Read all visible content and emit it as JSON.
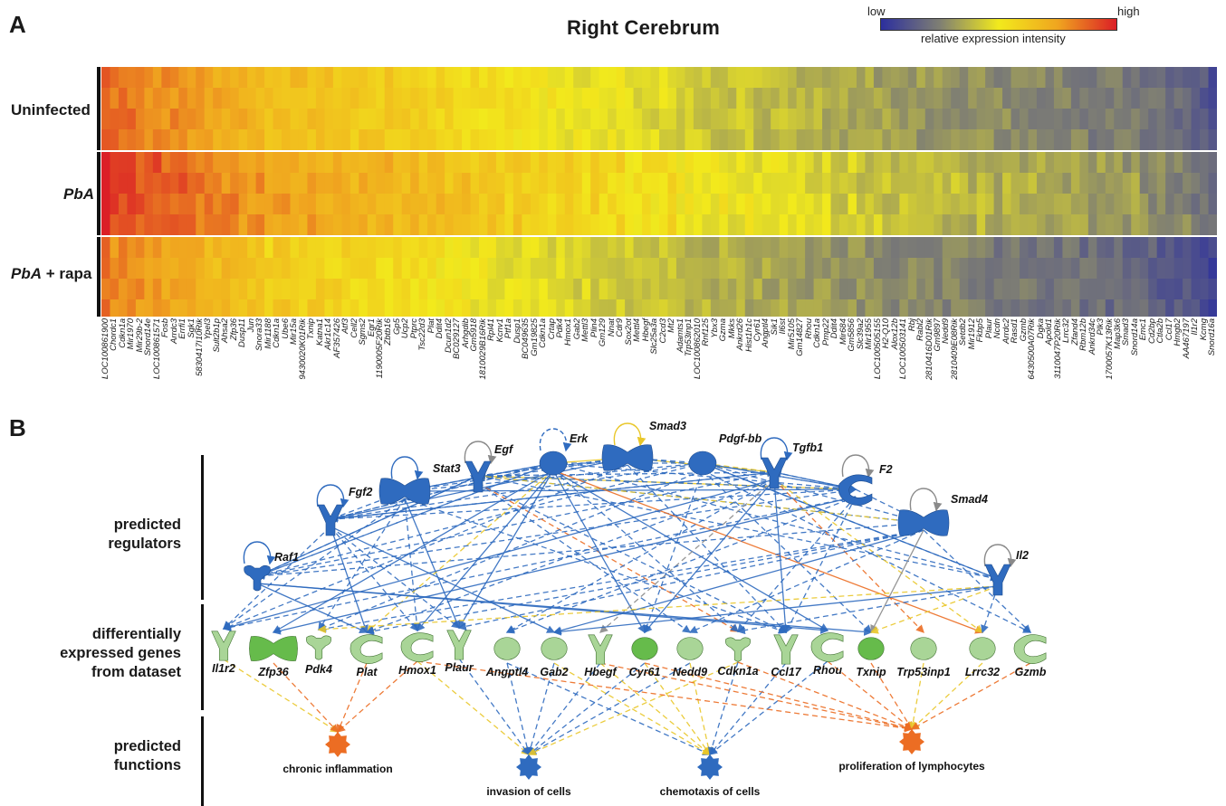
{
  "panel_a": {
    "letter": "A",
    "title": "Right Cerebrum",
    "legend": {
      "low": "low",
      "high": "high",
      "caption": "relative expression intensity",
      "colors": [
        "#2c2f9e",
        "#7f7f73",
        "#f2ea1c",
        "#f0a51f",
        "#db1f26"
      ]
    },
    "groups": [
      {
        "label_italic": "",
        "label_plain": "Uninfected",
        "rows": 4
      },
      {
        "label_italic": "PbA",
        "label_plain": "",
        "rows": 4
      },
      {
        "label_italic": "PbA",
        "label_plain": " + rapa",
        "rows": 4
      }
    ],
    "genes": [
      "LOC100861900",
      "Chordc1",
      "Cdkn1a",
      "Mir1970",
      "Mir29b-2",
      "Snord14e",
      "LOC100861571",
      "Fosb",
      "Arrdc3",
      "Errfi1",
      "Sgk1",
      "5830417I10Rik",
      "Ypel3",
      "Sult2b1p",
      "Ahsa2",
      "Zfp36",
      "Dusp11",
      "Jun",
      "Snora33",
      "Mir1188",
      "Cdkn1a",
      "Ube6",
      "Mir15a",
      "9430020K01Rik",
      "Txnip",
      "Katna1",
      "Akr1c14",
      "AF357426",
      "Atf3",
      "Cell2",
      "Sgms2",
      "Egr1",
      "1190005F20Rik",
      "Zbtb16",
      "Gp5",
      "Ucp2",
      "Ptprc",
      "Tsc22d3",
      "Plat",
      "Ddit4",
      "Dcun1d2",
      "BC029127",
      "Arhgdib",
      "Gm5918",
      "1810029B16Rik",
      "Rpl41",
      "Kcnv1",
      "Ptf1a",
      "Dusp1",
      "BC049635",
      "Gm19825",
      "Cdkn1a",
      "Crtap",
      "Pdk4",
      "Hmox1",
      "Gab2",
      "Mettl3",
      "Plin4",
      "Gm129",
      "Nnat",
      "Cdr9",
      "Sox2ot",
      "Mettl4",
      "Hbegf",
      "Slc25a3a",
      "C2cd3",
      "Mt2",
      "Adamts1",
      "Trp53inp1",
      "LOC100862010",
      "Rnf125",
      "Ybx3",
      "Gzma",
      "Mkks",
      "Ankrd26",
      "Hist1h1c",
      "Cyr61",
      "Angptl4",
      "Sik1",
      "Il6st",
      "Mir5105",
      "Gm14827",
      "Rhou",
      "Cdkn1a",
      "Pmp22",
      "Ddit4",
      "Mir684",
      "Gm5856",
      "Slc39a2",
      "Mir1955",
      "LOC100505155",
      "H2-Q10",
      "Alox12b",
      "LOC100503141",
      "Rbj",
      "Rabl2",
      "2810416D01Rik",
      "Gm9897",
      "Nedd9",
      "2810409E08Rik",
      "Setdb2",
      "Mir1912",
      "Fkbp5",
      "Plaur",
      "Ncdn",
      "Arrdc2",
      "Rasd1",
      "Gzmb",
      "6430500A07Rik",
      "Dgka",
      "Apold1",
      "3110047P20Rik",
      "Lrrc32",
      "Zfand4",
      "Rbm12b",
      "Ankrd34c",
      "Plk3",
      "1700057K13Rik",
      "Map3k6",
      "Smad3",
      "Snord14a",
      "Emc1",
      "Cd2bp",
      "Ctla2b",
      "Ccl17",
      "Hmgb2",
      "AA467197",
      "Il1r2",
      "Kcmg",
      "Snord16a"
    ],
    "gene_profile": [
      0.9,
      0.85,
      0.86,
      0.84,
      0.83,
      0.8,
      0.8,
      0.79,
      0.8,
      0.78,
      0.77,
      0.76,
      0.74,
      0.73,
      0.73,
      0.72,
      0.71,
      0.7,
      0.69,
      0.64,
      0.68,
      0.67,
      0.66,
      0.65,
      0.66,
      0.65,
      0.64,
      0.63,
      0.63,
      0.62,
      0.62,
      0.62,
      0.61,
      0.61,
      0.6,
      0.6,
      0.59,
      0.59,
      0.58,
      0.58,
      0.57,
      0.56,
      0.56,
      0.55,
      0.55,
      0.54,
      0.54,
      0.53,
      0.53,
      0.53,
      0.52,
      0.52,
      0.51,
      0.5,
      0.5,
      0.49,
      0.49,
      0.49,
      0.48,
      0.48,
      0.48,
      0.47,
      0.47,
      0.47,
      0.46,
      0.46,
      0.46,
      0.45,
      0.44,
      0.43,
      0.42,
      0.42,
      0.41,
      0.41,
      0.41,
      0.4,
      0.4,
      0.39,
      0.39,
      0.39,
      0.38,
      0.38,
      0.37,
      0.37,
      0.36,
      0.36,
      0.35,
      0.35,
      0.34,
      0.34,
      0.33,
      0.33,
      0.32,
      0.32,
      0.32,
      0.31,
      0.31,
      0.31,
      0.3,
      0.3,
      0.3,
      0.29,
      0.29,
      0.29,
      0.28,
      0.28,
      0.28,
      0.28,
      0.27,
      0.27,
      0.27,
      0.26,
      0.26,
      0.26,
      0.25,
      0.25,
      0.25,
      0.24,
      0.24,
      0.23,
      0.23,
      0.22,
      0.21,
      0.2,
      0.19,
      0.18,
      0.17,
      0.16,
      0.14,
      0.1
    ],
    "group_shift": [
      0.0,
      0.07,
      -0.05
    ]
  },
  "panel_b": {
    "letter": "B",
    "categories": [
      {
        "lines": [
          "predicted",
          "regulators"
        ]
      },
      {
        "lines": [
          "differentially",
          "expressed genes",
          "from dataset"
        ]
      },
      {
        "lines": [
          "predicted",
          "functions"
        ]
      }
    ],
    "regulators": [
      {
        "name": "Stat3",
        "shape": "bowtie"
      },
      {
        "name": "Egf",
        "shape": "receptor"
      },
      {
        "name": "Erk",
        "shape": "oval"
      },
      {
        "name": "Smad3",
        "shape": "bowtie"
      },
      {
        "name": "Pdgf-bb",
        "shape": "oval"
      },
      {
        "name": "Tgfb1",
        "shape": "receptor"
      },
      {
        "name": "F2",
        "shape": "enzyme"
      },
      {
        "name": "Smad4",
        "shape": "bowtie"
      },
      {
        "name": "Fgf2",
        "shape": "receptor"
      },
      {
        "name": "Raf1",
        "shape": "kinase"
      },
      {
        "name": "Il2",
        "shape": "receptor"
      }
    ],
    "genes": [
      {
        "name": "Il1r2",
        "shape": "receptor"
      },
      {
        "name": "Zfp36",
        "shape": "bowtie"
      },
      {
        "name": "Pdk4",
        "shape": "kinase"
      },
      {
        "name": "Plat",
        "shape": "enzyme"
      },
      {
        "name": "Hmox1",
        "shape": "enzyme"
      },
      {
        "name": "Plaur",
        "shape": "receptor"
      },
      {
        "name": "Angptl4",
        "shape": "oval"
      },
      {
        "name": "Gab2",
        "shape": "oval"
      },
      {
        "name": "Hbegf",
        "shape": "receptor"
      },
      {
        "name": "Cyr61",
        "shape": "oval"
      },
      {
        "name": "Nedd9",
        "shape": "oval"
      },
      {
        "name": "Cdkn1a",
        "shape": "kinase"
      },
      {
        "name": "Ccl17",
        "shape": "receptor"
      },
      {
        "name": "Rhou",
        "shape": "enzyme"
      },
      {
        "name": "Txnip",
        "shape": "oval"
      },
      {
        "name": "Trp53inp1",
        "shape": "oval"
      },
      {
        "name": "Lrrc32",
        "shape": "oval"
      },
      {
        "name": "Gzmb",
        "shape": "enzyme"
      }
    ],
    "functions": [
      {
        "name": "chronic inflammation",
        "color": "#ec6d23"
      },
      {
        "name": "invasion of cells",
        "color": "#2f6bbf"
      },
      {
        "name": "chemotaxis of cells",
        "color": "#2f6bbf"
      },
      {
        "name": "proliferation of lymphocytes",
        "color": "#ec6d23"
      }
    ],
    "colors": {
      "regulator": "#2f6bbf",
      "gene_light": "#a9d597",
      "gene_dark": "#66bb4b",
      "edge_blue": "#2f6bbf",
      "edge_orange": "#ec6d23",
      "edge_yellow": "#e9c72a",
      "edge_gray": "#8a8a8a"
    }
  }
}
